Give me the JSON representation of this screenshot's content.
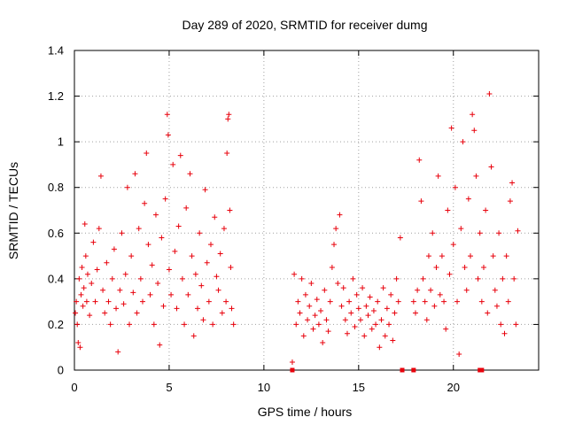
{
  "chart_data": {
    "type": "scatter",
    "title": "Day 289 of 2020, SRMTID for receiver dumg",
    "xlabel": "GPS time / hours",
    "ylabel": "SRMTID / TECUs",
    "xlim": [
      0,
      24.5
    ],
    "ylim": [
      0,
      1.4
    ],
    "xticks": [
      0,
      5,
      10,
      15,
      20
    ],
    "yticks": [
      0,
      0.2,
      0.4,
      0.6,
      0.8,
      1,
      1.2,
      1.4
    ],
    "ytick_labels": [
      "0",
      "0.2",
      "0.4",
      "0.6",
      "0.8",
      "1",
      "1.2",
      "1.4"
    ],
    "grid": true,
    "marker": "plus",
    "color": "#e8000b",
    "series": [
      {
        "name": "SRMTID",
        "points": [
          [
            0.05,
            0.25
          ],
          [
            0.1,
            0.3
          ],
          [
            0.15,
            0.2
          ],
          [
            0.2,
            0.12
          ],
          [
            0.25,
            0.4
          ],
          [
            0.3,
            0.1
          ],
          [
            0.35,
            0.33
          ],
          [
            0.4,
            0.45
          ],
          [
            0.45,
            0.28
          ],
          [
            0.5,
            0.36
          ],
          [
            0.55,
            0.64
          ],
          [
            0.6,
            0.5
          ],
          [
            0.65,
            0.3
          ],
          [
            0.7,
            0.42
          ],
          [
            0.8,
            0.24
          ],
          [
            0.9,
            0.38
          ],
          [
            1.0,
            0.56
          ],
          [
            1.1,
            0.3
          ],
          [
            1.2,
            0.44
          ],
          [
            1.3,
            0.62
          ],
          [
            1.4,
            0.85
          ],
          [
            1.5,
            0.35
          ],
          [
            1.6,
            0.25
          ],
          [
            1.7,
            0.47
          ],
          [
            1.8,
            0.3
          ],
          [
            1.9,
            0.2
          ],
          [
            2.0,
            0.4
          ],
          [
            2.1,
            0.53
          ],
          [
            2.2,
            0.27
          ],
          [
            2.3,
            0.08
          ],
          [
            2.4,
            0.35
          ],
          [
            2.5,
            0.6
          ],
          [
            2.6,
            0.29
          ],
          [
            2.7,
            0.42
          ],
          [
            2.8,
            0.8
          ],
          [
            2.9,
            0.2
          ],
          [
            3.0,
            0.5
          ],
          [
            3.1,
            0.34
          ],
          [
            3.2,
            0.86
          ],
          [
            3.3,
            0.25
          ],
          [
            3.4,
            0.62
          ],
          [
            3.5,
            0.4
          ],
          [
            3.6,
            0.3
          ],
          [
            3.7,
            0.73
          ],
          [
            3.8,
            0.95
          ],
          [
            3.9,
            0.55
          ],
          [
            4.0,
            0.33
          ],
          [
            4.1,
            0.46
          ],
          [
            4.2,
            0.2
          ],
          [
            4.3,
            0.68
          ],
          [
            4.4,
            0.38
          ],
          [
            4.5,
            0.11
          ],
          [
            4.6,
            0.58
          ],
          [
            4.7,
            0.28
          ],
          [
            4.8,
            0.75
          ],
          [
            4.9,
            1.12
          ],
          [
            4.95,
            1.03
          ],
          [
            5.0,
            0.44
          ],
          [
            5.1,
            0.33
          ],
          [
            5.2,
            0.9
          ],
          [
            5.3,
            0.52
          ],
          [
            5.4,
            0.27
          ],
          [
            5.5,
            0.63
          ],
          [
            5.6,
            0.94
          ],
          [
            5.7,
            0.4
          ],
          [
            5.8,
            0.2
          ],
          [
            5.9,
            0.71
          ],
          [
            6.0,
            0.33
          ],
          [
            6.1,
            0.86
          ],
          [
            6.2,
            0.5
          ],
          [
            6.3,
            0.15
          ],
          [
            6.4,
            0.42
          ],
          [
            6.5,
            0.27
          ],
          [
            6.6,
            0.6
          ],
          [
            6.7,
            0.37
          ],
          [
            6.8,
            0.22
          ],
          [
            6.9,
            0.79
          ],
          [
            7.0,
            0.47
          ],
          [
            7.1,
            0.3
          ],
          [
            7.2,
            0.55
          ],
          [
            7.3,
            0.2
          ],
          [
            7.4,
            0.67
          ],
          [
            7.5,
            0.41
          ],
          [
            7.6,
            0.35
          ],
          [
            7.7,
            0.51
          ],
          [
            7.8,
            0.25
          ],
          [
            7.9,
            0.62
          ],
          [
            8.0,
            0.3
          ],
          [
            8.05,
            0.95
          ],
          [
            8.1,
            1.1
          ],
          [
            8.15,
            1.12
          ],
          [
            8.2,
            0.7
          ],
          [
            8.25,
            0.45
          ],
          [
            8.3,
            0.27
          ],
          [
            8.4,
            0.2
          ],
          [
            11.5,
            0.035
          ],
          [
            11.6,
            0.42
          ],
          [
            11.7,
            0.2
          ],
          [
            11.8,
            0.3
          ],
          [
            11.9,
            0.25
          ],
          [
            12.0,
            0.4
          ],
          [
            12.1,
            0.15
          ],
          [
            12.2,
            0.33
          ],
          [
            12.3,
            0.22
          ],
          [
            12.4,
            0.28
          ],
          [
            12.5,
            0.38
          ],
          [
            12.6,
            0.18
          ],
          [
            12.7,
            0.24
          ],
          [
            12.8,
            0.31
          ],
          [
            12.9,
            0.2
          ],
          [
            13.0,
            0.26
          ],
          [
            13.1,
            0.12
          ],
          [
            13.2,
            0.35
          ],
          [
            13.3,
            0.22
          ],
          [
            13.4,
            0.17
          ],
          [
            13.5,
            0.3
          ],
          [
            13.6,
            0.45
          ],
          [
            13.7,
            0.55
          ],
          [
            13.8,
            0.62
          ],
          [
            13.9,
            0.38
          ],
          [
            14.0,
            0.68
          ],
          [
            14.1,
            0.28
          ],
          [
            14.2,
            0.36
          ],
          [
            14.3,
            0.22
          ],
          [
            14.4,
            0.16
          ],
          [
            14.5,
            0.3
          ],
          [
            14.6,
            0.25
          ],
          [
            14.7,
            0.4
          ],
          [
            14.8,
            0.19
          ],
          [
            14.9,
            0.33
          ],
          [
            15.0,
            0.27
          ],
          [
            15.1,
            0.22
          ],
          [
            15.2,
            0.36
          ],
          [
            15.3,
            0.15
          ],
          [
            15.4,
            0.28
          ],
          [
            15.5,
            0.24
          ],
          [
            15.6,
            0.32
          ],
          [
            15.7,
            0.18
          ],
          [
            15.8,
            0.26
          ],
          [
            15.9,
            0.2
          ],
          [
            16.0,
            0.3
          ],
          [
            16.1,
            0.1
          ],
          [
            16.2,
            0.22
          ],
          [
            16.3,
            0.36
          ],
          [
            16.4,
            0.15
          ],
          [
            16.5,
            0.27
          ],
          [
            16.6,
            0.2
          ],
          [
            16.7,
            0.33
          ],
          [
            16.8,
            0.13
          ],
          [
            16.9,
            0.25
          ],
          [
            17.0,
            0.4
          ],
          [
            17.1,
            0.3
          ],
          [
            17.2,
            0.58
          ],
          [
            17.9,
            0.3
          ],
          [
            18.0,
            0.25
          ],
          [
            18.1,
            0.35
          ],
          [
            18.2,
            0.92
          ],
          [
            18.3,
            0.74
          ],
          [
            18.4,
            0.4
          ],
          [
            18.5,
            0.3
          ],
          [
            18.6,
            0.22
          ],
          [
            18.7,
            0.5
          ],
          [
            18.8,
            0.35
          ],
          [
            18.9,
            0.6
          ],
          [
            19.0,
            0.28
          ],
          [
            19.1,
            0.45
          ],
          [
            19.2,
            0.85
          ],
          [
            19.3,
            0.33
          ],
          [
            19.4,
            0.5
          ],
          [
            19.5,
            0.3
          ],
          [
            19.6,
            0.18
          ],
          [
            19.7,
            0.7
          ],
          [
            19.8,
            0.42
          ],
          [
            19.9,
            1.06
          ],
          [
            20.0,
            0.55
          ],
          [
            20.1,
            0.8
          ],
          [
            20.2,
            0.3
          ],
          [
            20.3,
            0.07
          ],
          [
            20.4,
            0.62
          ],
          [
            20.5,
            1.0
          ],
          [
            20.6,
            0.45
          ],
          [
            20.7,
            0.35
          ],
          [
            20.8,
            0.75
          ],
          [
            20.9,
            0.5
          ],
          [
            21.0,
            1.12
          ],
          [
            21.1,
            1.05
          ],
          [
            21.2,
            0.85
          ],
          [
            21.3,
            0.4
          ],
          [
            21.4,
            0.6
          ],
          [
            21.5,
            0.3
          ],
          [
            21.6,
            0.45
          ],
          [
            21.7,
            0.7
          ],
          [
            21.8,
            0.25
          ],
          [
            21.9,
            1.21
          ],
          [
            22.0,
            0.89
          ],
          [
            22.1,
            0.5
          ],
          [
            22.2,
            0.35
          ],
          [
            22.3,
            0.28
          ],
          [
            22.4,
            0.6
          ],
          [
            22.5,
            0.2
          ],
          [
            22.6,
            0.4
          ],
          [
            22.7,
            0.16
          ],
          [
            22.8,
            0.5
          ],
          [
            22.9,
            0.3
          ],
          [
            23.0,
            0.74
          ],
          [
            23.1,
            0.82
          ],
          [
            23.2,
            0.4
          ],
          [
            23.3,
            0.2
          ],
          [
            23.4,
            0.61
          ]
        ]
      }
    ],
    "axis_markers": [
      11.5,
      17.3,
      17.9,
      21.4,
      21.5
    ]
  }
}
